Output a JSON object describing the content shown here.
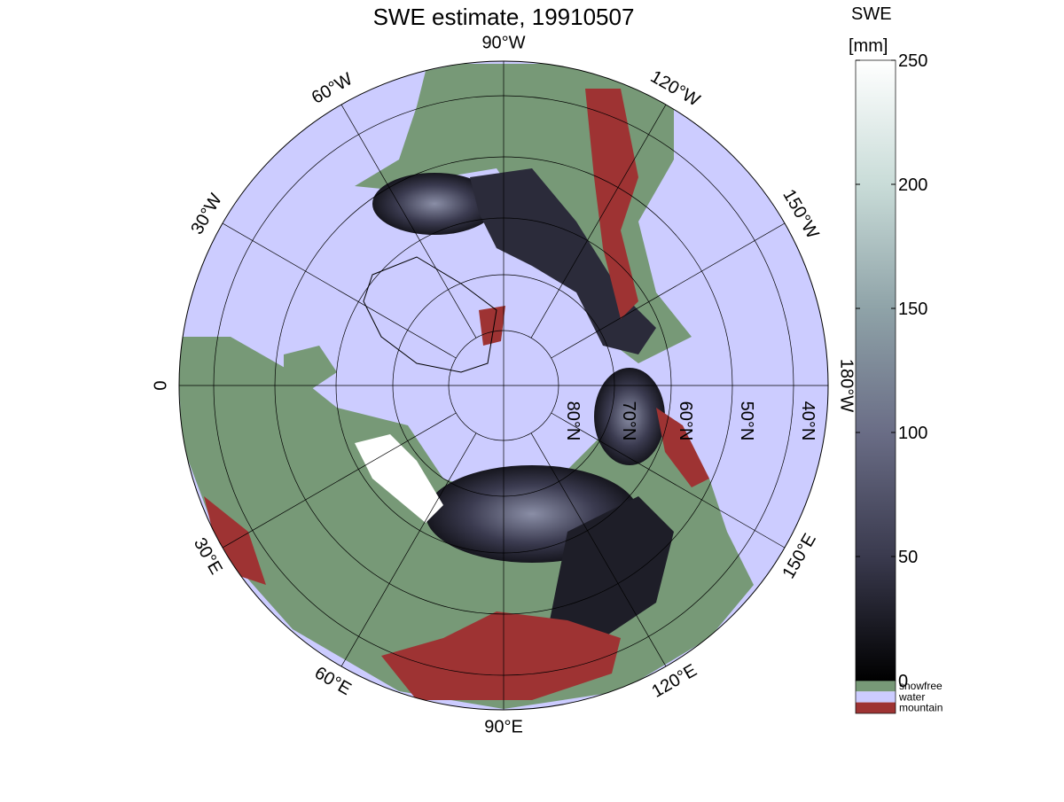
{
  "title": "SWE estimate, 19910507",
  "colorbar": {
    "label": [
      "SWE",
      "[mm]"
    ],
    "lim": [
      0,
      250
    ],
    "ticks": [
      0,
      50,
      100,
      150,
      200,
      250
    ],
    "colors": [
      "#000000",
      "#3a3a4e",
      "#6a6d86",
      "#8fa3a8",
      "#c9dcd8",
      "#ffffff"
    ]
  },
  "legend": [
    {
      "name": "snowfree",
      "color": "#779977"
    },
    {
      "name": "water",
      "color": "#ccccff"
    },
    {
      "name": "mountain",
      "color": "#9e3333"
    }
  ],
  "longitude_labels": [
    "90°W",
    "120°W",
    "150°W",
    "180°W",
    "150°E",
    "120°E",
    "90°E",
    "60°E",
    "30°E",
    "0",
    "30°W",
    "60°W"
  ],
  "latitude_labels": [
    "80°N",
    "70°N",
    "60°N",
    "50°N",
    "40°N"
  ]
}
